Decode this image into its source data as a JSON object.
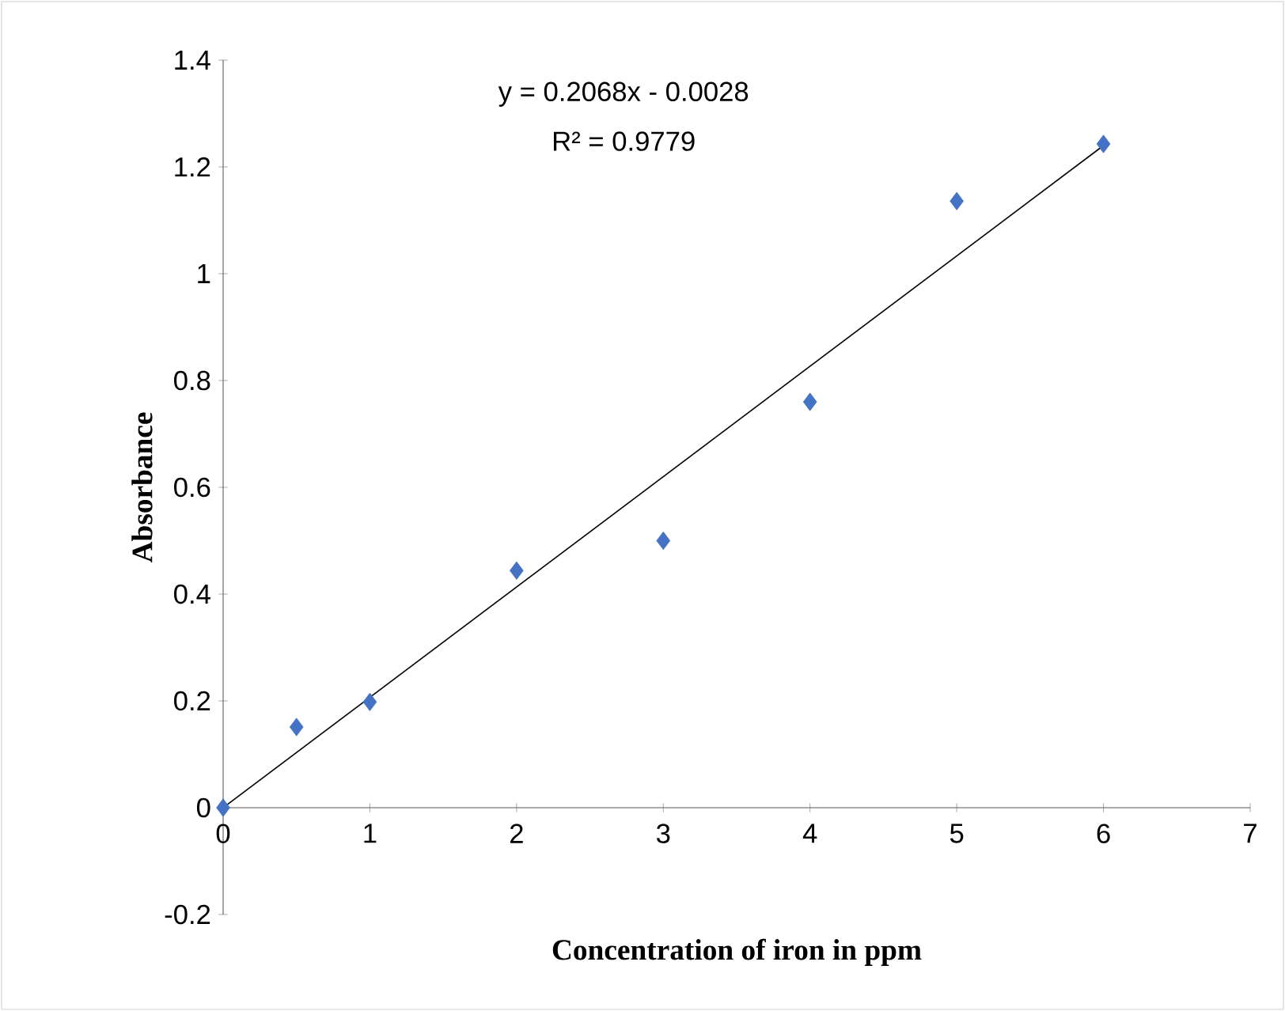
{
  "chart_data": {
    "type": "scatter",
    "xlabel": "Concentration of iron in ppm",
    "ylabel": "Absorbance",
    "annotations": [
      "y = 0.2068x - 0.0028",
      "R² = 0.9779"
    ],
    "x": [
      0,
      0.5,
      1,
      2,
      3,
      4,
      5,
      6
    ],
    "series": [
      {
        "color": "#4472c4",
        "marker": "diamond",
        "values": [
          0,
          0.151,
          0.198,
          0.444,
          0.5,
          0.76,
          1.136,
          1.243
        ]
      },
      {
        "type": "line",
        "color": "#000000",
        "marker": "none",
        "x": [
          0,
          6
        ],
        "values": [
          0,
          1.24
        ]
      }
    ],
    "xlim": [
      0,
      7
    ],
    "xticks": [
      0,
      1,
      2,
      3,
      4,
      5,
      6,
      7
    ],
    "ylim": [
      -0.2,
      1.4
    ],
    "yticks": [
      -0.2,
      0,
      0.2,
      0.4,
      0.6,
      0.8,
      1,
      1.2,
      1.4
    ],
    "grid": false
  }
}
